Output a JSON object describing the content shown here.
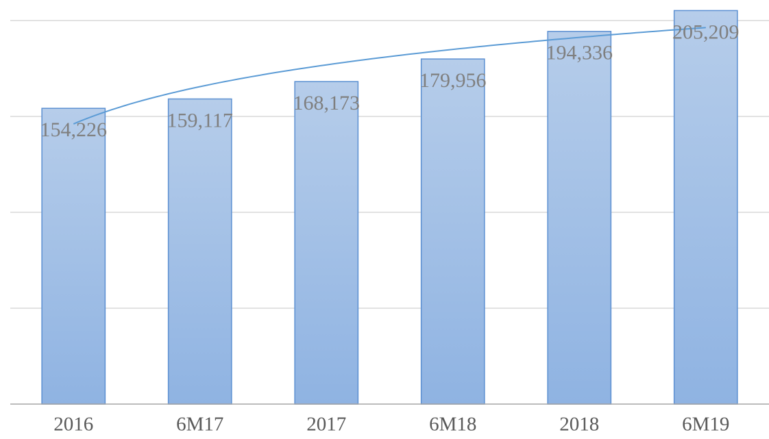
{
  "chart_data": {
    "type": "bar",
    "categories": [
      "2016",
      "6M17",
      "2017",
      "6M18",
      "2018",
      "6M19"
    ],
    "values": [
      154226,
      159117,
      168173,
      179956,
      194336,
      205209
    ],
    "value_labels": [
      "154,226",
      "159,117",
      "168,173",
      "179,956",
      "194,336",
      "205,209"
    ],
    "color": "#9dbde6",
    "ylim": [
      0,
      210000
    ],
    "yticks": [
      0,
      50000,
      100000,
      150000,
      200000
    ],
    "grid": true,
    "trendline": "logarithmic",
    "trendline_color": "#5b9bd5"
  }
}
